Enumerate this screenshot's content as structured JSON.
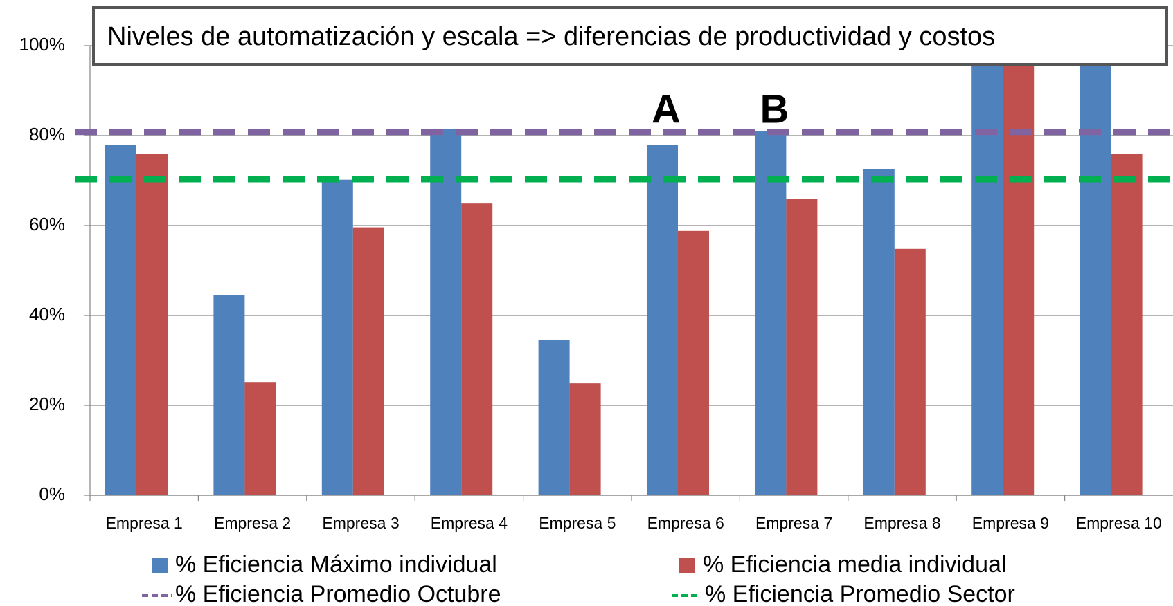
{
  "chart_data": {
    "type": "bar",
    "title": "Niveles de automatización y escala => diferencias de productividad y costos",
    "categories": [
      "Empresa 1",
      "Empresa 2",
      "Empresa 3",
      "Empresa 4",
      "Empresa 5",
      "Empresa 6",
      "Empresa 7",
      "Empresa 8",
      "Empresa 9",
      "Empresa 10"
    ],
    "series": [
      {
        "name": "% Eficiencia Máximo individual",
        "color": "#4f81bd",
        "values": [
          78.0,
          44.6,
          70.2,
          81.5,
          34.5,
          78.0,
          81.0,
          72.5,
          100,
          100
        ]
      },
      {
        "name": "% Eficiencia media individual",
        "color": "#c0504d",
        "values": [
          75.9,
          25.2,
          59.6,
          64.9,
          24.9,
          58.8,
          65.9,
          54.8,
          100,
          76.0
        ]
      }
    ],
    "reference_lines": [
      {
        "name": "% Eficiencia Promedio Octubre",
        "color": "#8064a2",
        "value": 80.8
      },
      {
        "name": "% Eficiencia Promedio Sector",
        "color": "#00b050",
        "value": 70.3
      }
    ],
    "annotations": [
      "A",
      "B"
    ],
    "ylim": [
      0,
      100
    ],
    "yticks": [
      {
        "value": 0,
        "label": "0%"
      },
      {
        "value": 20,
        "label": "20%"
      },
      {
        "value": 40,
        "label": "40%"
      },
      {
        "value": 60,
        "label": "60%"
      },
      {
        "value": 80,
        "label": "80%"
      },
      {
        "value": 100,
        "label": "100%"
      }
    ],
    "grid": true
  }
}
